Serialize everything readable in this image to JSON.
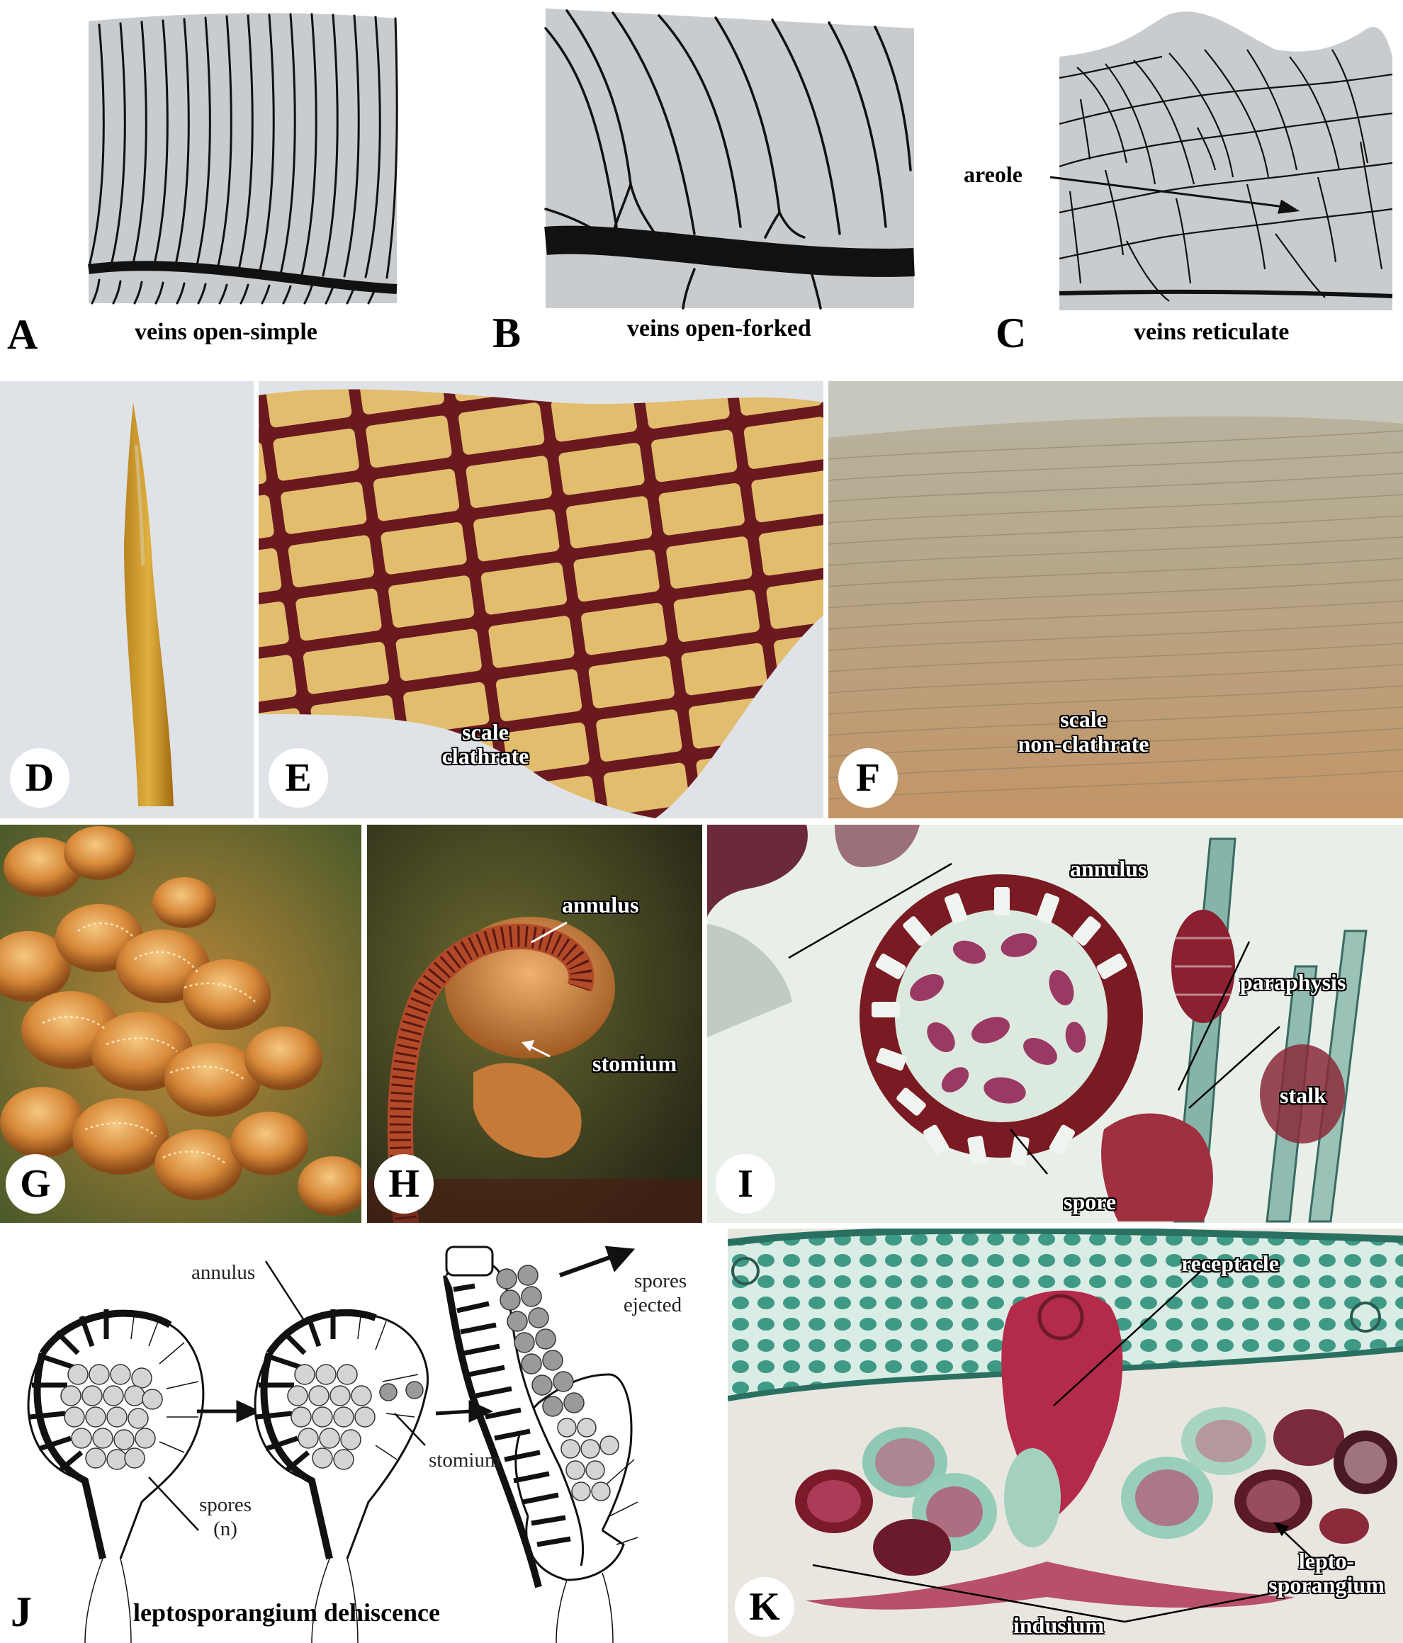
{
  "panels": {
    "A": {
      "letter": "A",
      "caption": "veins open-simple"
    },
    "B": {
      "letter": "B",
      "caption": "veins open-forked"
    },
    "C": {
      "letter": "C",
      "caption": "veins reticulate",
      "callout": "areole"
    },
    "D": {
      "letter": "D"
    },
    "E": {
      "letter": "E",
      "label_line1": "scale",
      "label_line2": "clathrate"
    },
    "F": {
      "letter": "F",
      "label_line1": "scale",
      "label_line2": "non-clathrate"
    },
    "G": {
      "letter": "G"
    },
    "H": {
      "letter": "H",
      "annulus": "annulus",
      "stomium": "stomium"
    },
    "I": {
      "letter": "I",
      "annulus": "annulus",
      "paraphysis": "paraphysis",
      "stalk": "stalk",
      "spore": "spore"
    },
    "J": {
      "letter": "J",
      "caption": "leptosporangium dehiscence",
      "annulus": "annulus",
      "spores_line1": "spores",
      "spores_line2": "(n)",
      "stomium": "stomium",
      "ejected_line1": "spores",
      "ejected_line2": "ejected"
    },
    "K": {
      "letter": "K",
      "receptacle": "receptacle",
      "lepto_line1": "lepto-",
      "lepto_line2": "sporangium",
      "indusium": "indusium"
    }
  },
  "colors": {
    "blade_gray": "#c9ccce",
    "vein": "#111111",
    "scale_cell": "#e2bd6e",
    "scale_wall": "#6a1a1e",
    "stain_red": "#b03050",
    "stain_green": "#5fa898",
    "spore_gray": "#c8c8c8"
  }
}
